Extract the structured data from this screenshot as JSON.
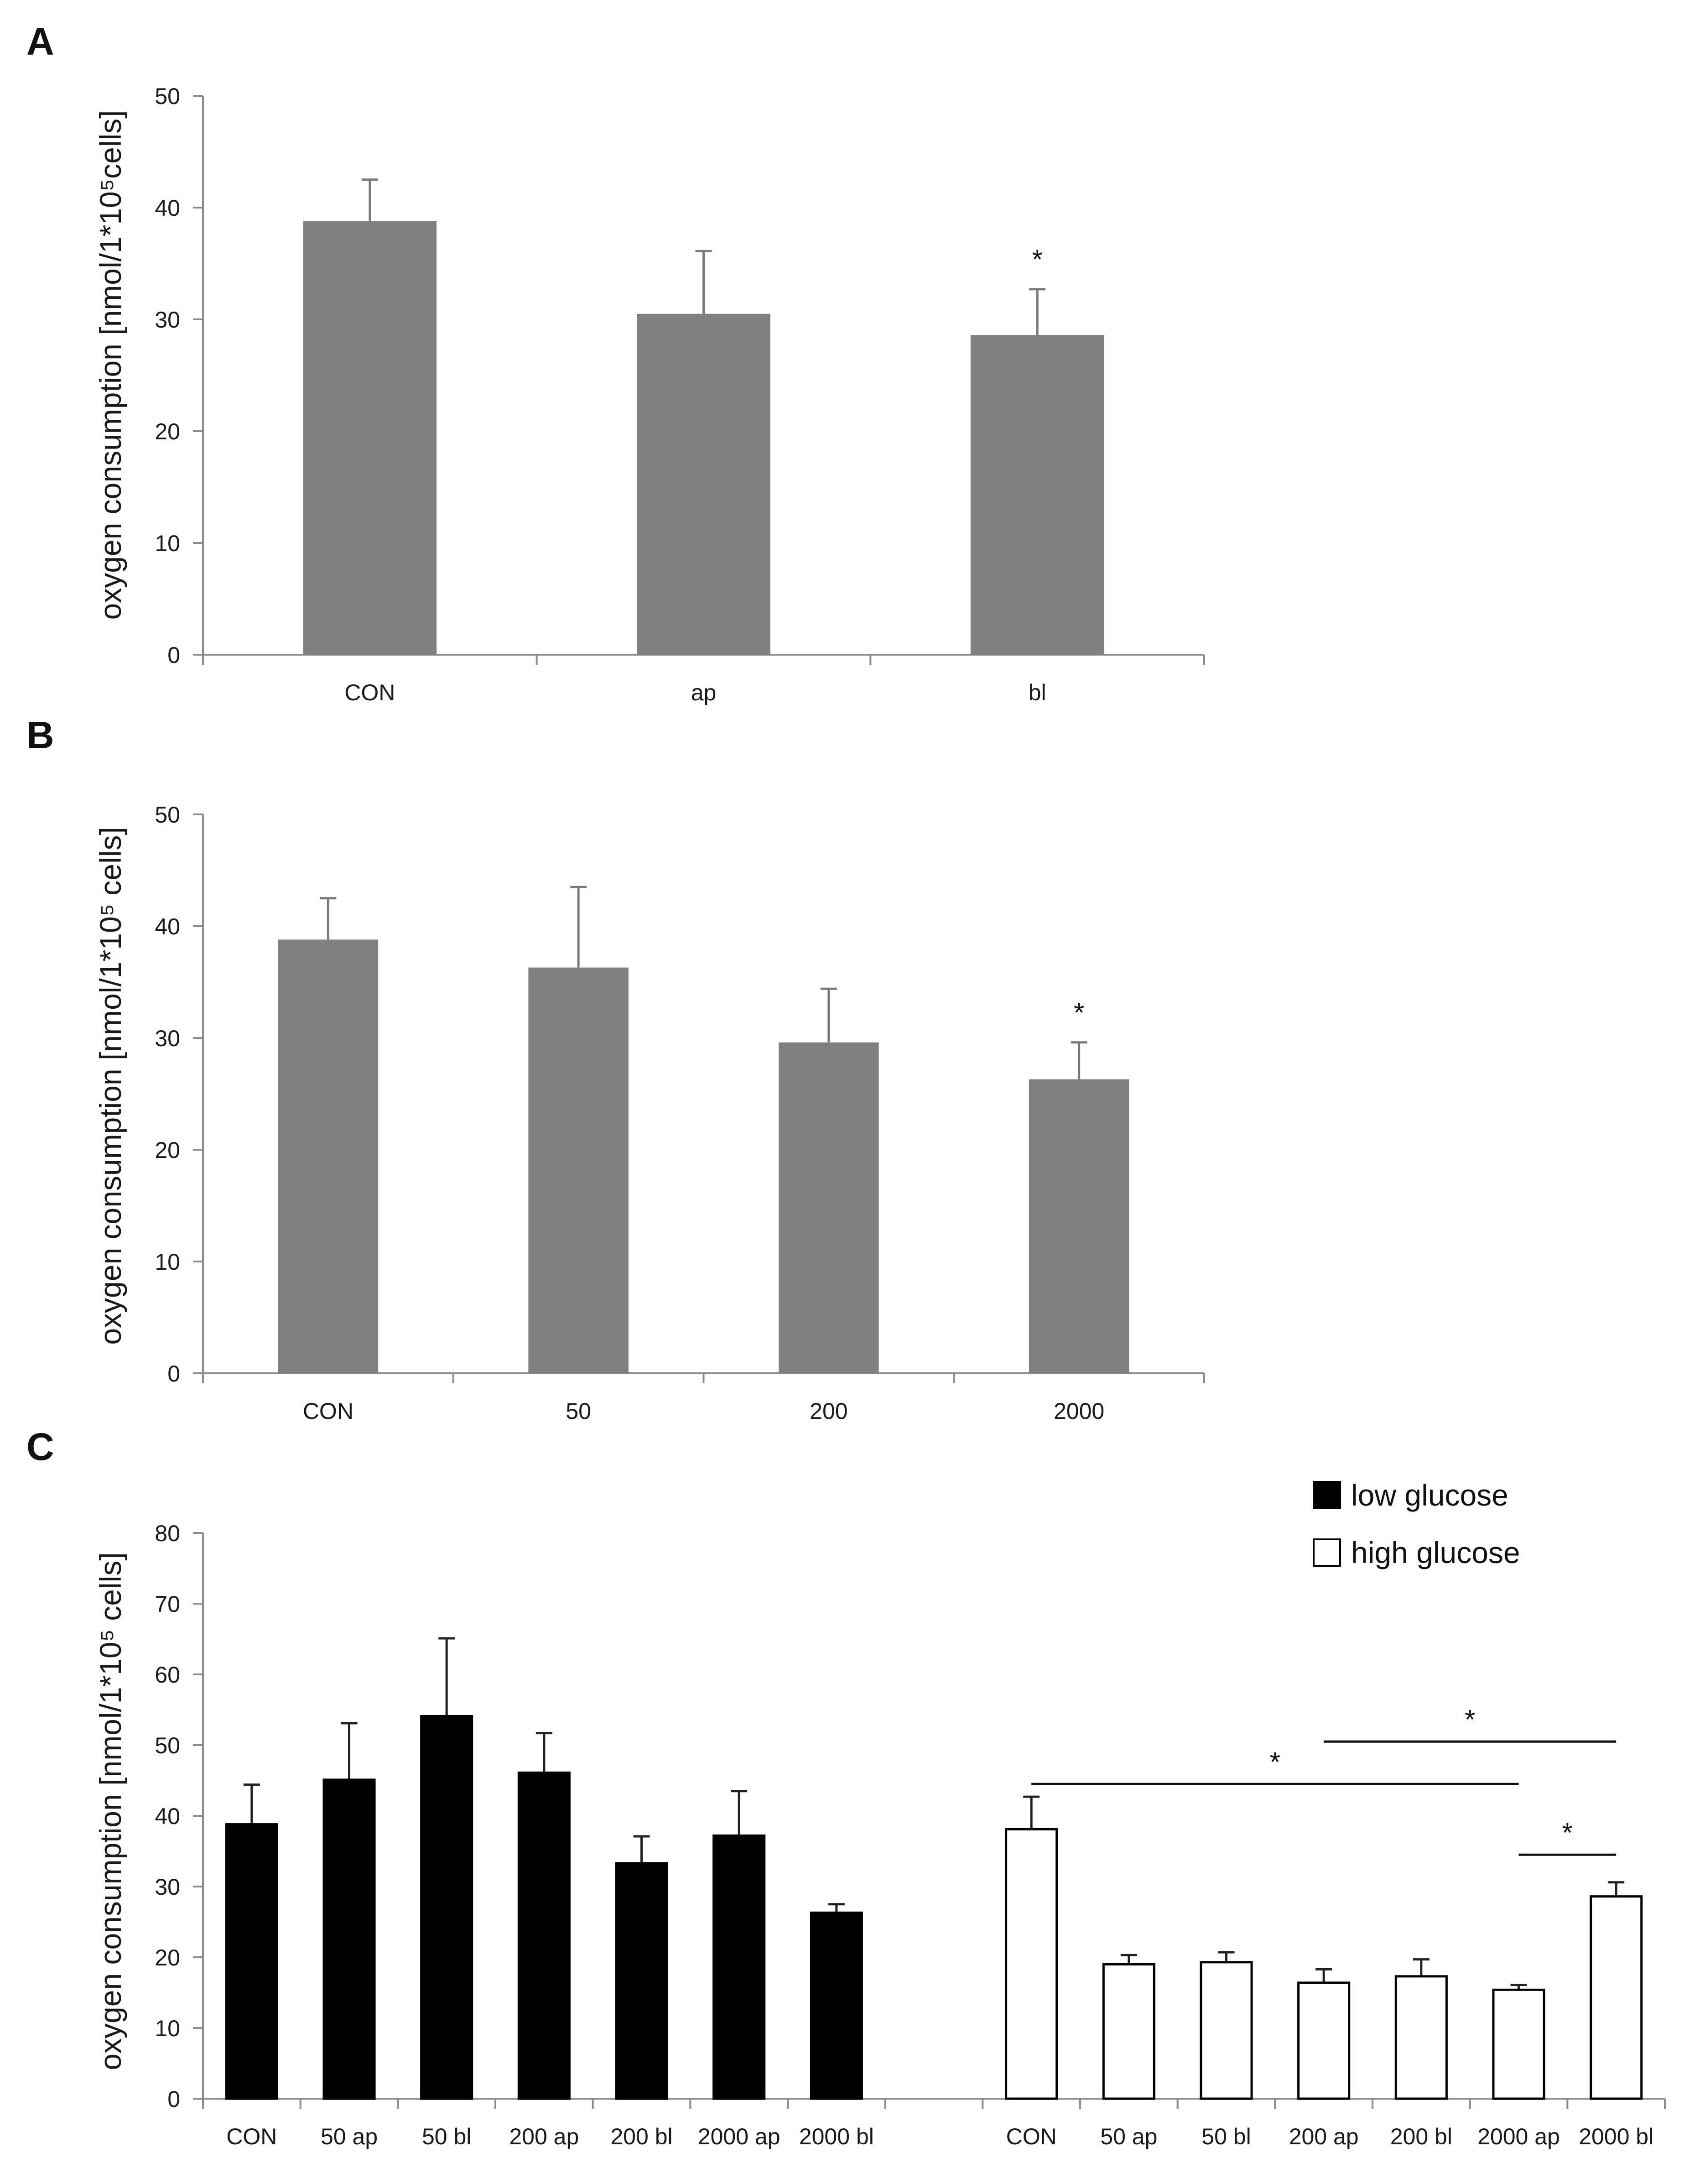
{
  "chart_data": [
    {
      "panel": "A",
      "type": "bar",
      "ylabel": "oxygen consumption [nmol/1*10⁵cells]",
      "ylim": [
        0,
        50
      ],
      "yticks": [
        0,
        10,
        20,
        30,
        40,
        50
      ],
      "categories": [
        "CON",
        "ap",
        "bl"
      ],
      "values": [
        38.8,
        30.5,
        28.6
      ],
      "errors": [
        3.7,
        5.6,
        4.1
      ],
      "significance": [
        "",
        "",
        "*"
      ],
      "color": "#808080"
    },
    {
      "panel": "B",
      "type": "bar",
      "ylabel": "oxygen consumption [nmol/1*10⁵ cells]",
      "ylim": [
        0,
        50
      ],
      "yticks": [
        0,
        10,
        20,
        30,
        40,
        50
      ],
      "categories": [
        "CON",
        "50",
        "200",
        "2000"
      ],
      "values": [
        38.8,
        36.3,
        29.6,
        26.3
      ],
      "errors": [
        3.7,
        7.2,
        4.8,
        3.3
      ],
      "significance": [
        "",
        "",
        "",
        "*"
      ],
      "color": "#808080"
    },
    {
      "panel": "C",
      "type": "bar",
      "ylabel": "oxygen consumption [nmol/1*10⁵ cells]",
      "ylim": [
        0,
        80
      ],
      "yticks": [
        0,
        10,
        20,
        30,
        40,
        50,
        60,
        70,
        80
      ],
      "legend": [
        {
          "label": "low glucose",
          "color": "#000000"
        },
        {
          "label": "high glucose",
          "color": "#ffffff"
        }
      ],
      "series": [
        {
          "name": "low glucose",
          "categories": [
            "CON",
            "50 ap",
            "50 bl",
            "200 ap",
            "200 bl",
            "2000 ap",
            "2000 bl"
          ],
          "values": [
            38.8,
            45.1,
            54.1,
            46.1,
            33.3,
            37.2,
            26.3
          ],
          "errors": [
            5.6,
            8.0,
            11.0,
            5.6,
            3.8,
            6.3,
            1.2
          ]
        },
        {
          "name": "high glucose",
          "categories": [
            "CON",
            "50 ap",
            "50 bl",
            "200 ap",
            "200 bl",
            "2000 ap",
            "2000 bl"
          ],
          "values": [
            38.1,
            19.0,
            19.3,
            16.4,
            17.3,
            15.4,
            28.6
          ],
          "errors": [
            4.6,
            1.3,
            1.4,
            1.9,
            2.4,
            0.7,
            2.0
          ]
        }
      ],
      "significance_brackets": [
        {
          "from": "CON",
          "to": "2000 ap",
          "y": 44.5,
          "label": "*"
        },
        {
          "from": "200 ap",
          "to": "2000 bl",
          "y": 50.5,
          "label": "*"
        },
        {
          "from": "2000 ap",
          "to": "2000 bl",
          "y": 34.5,
          "label": "*"
        }
      ]
    }
  ]
}
